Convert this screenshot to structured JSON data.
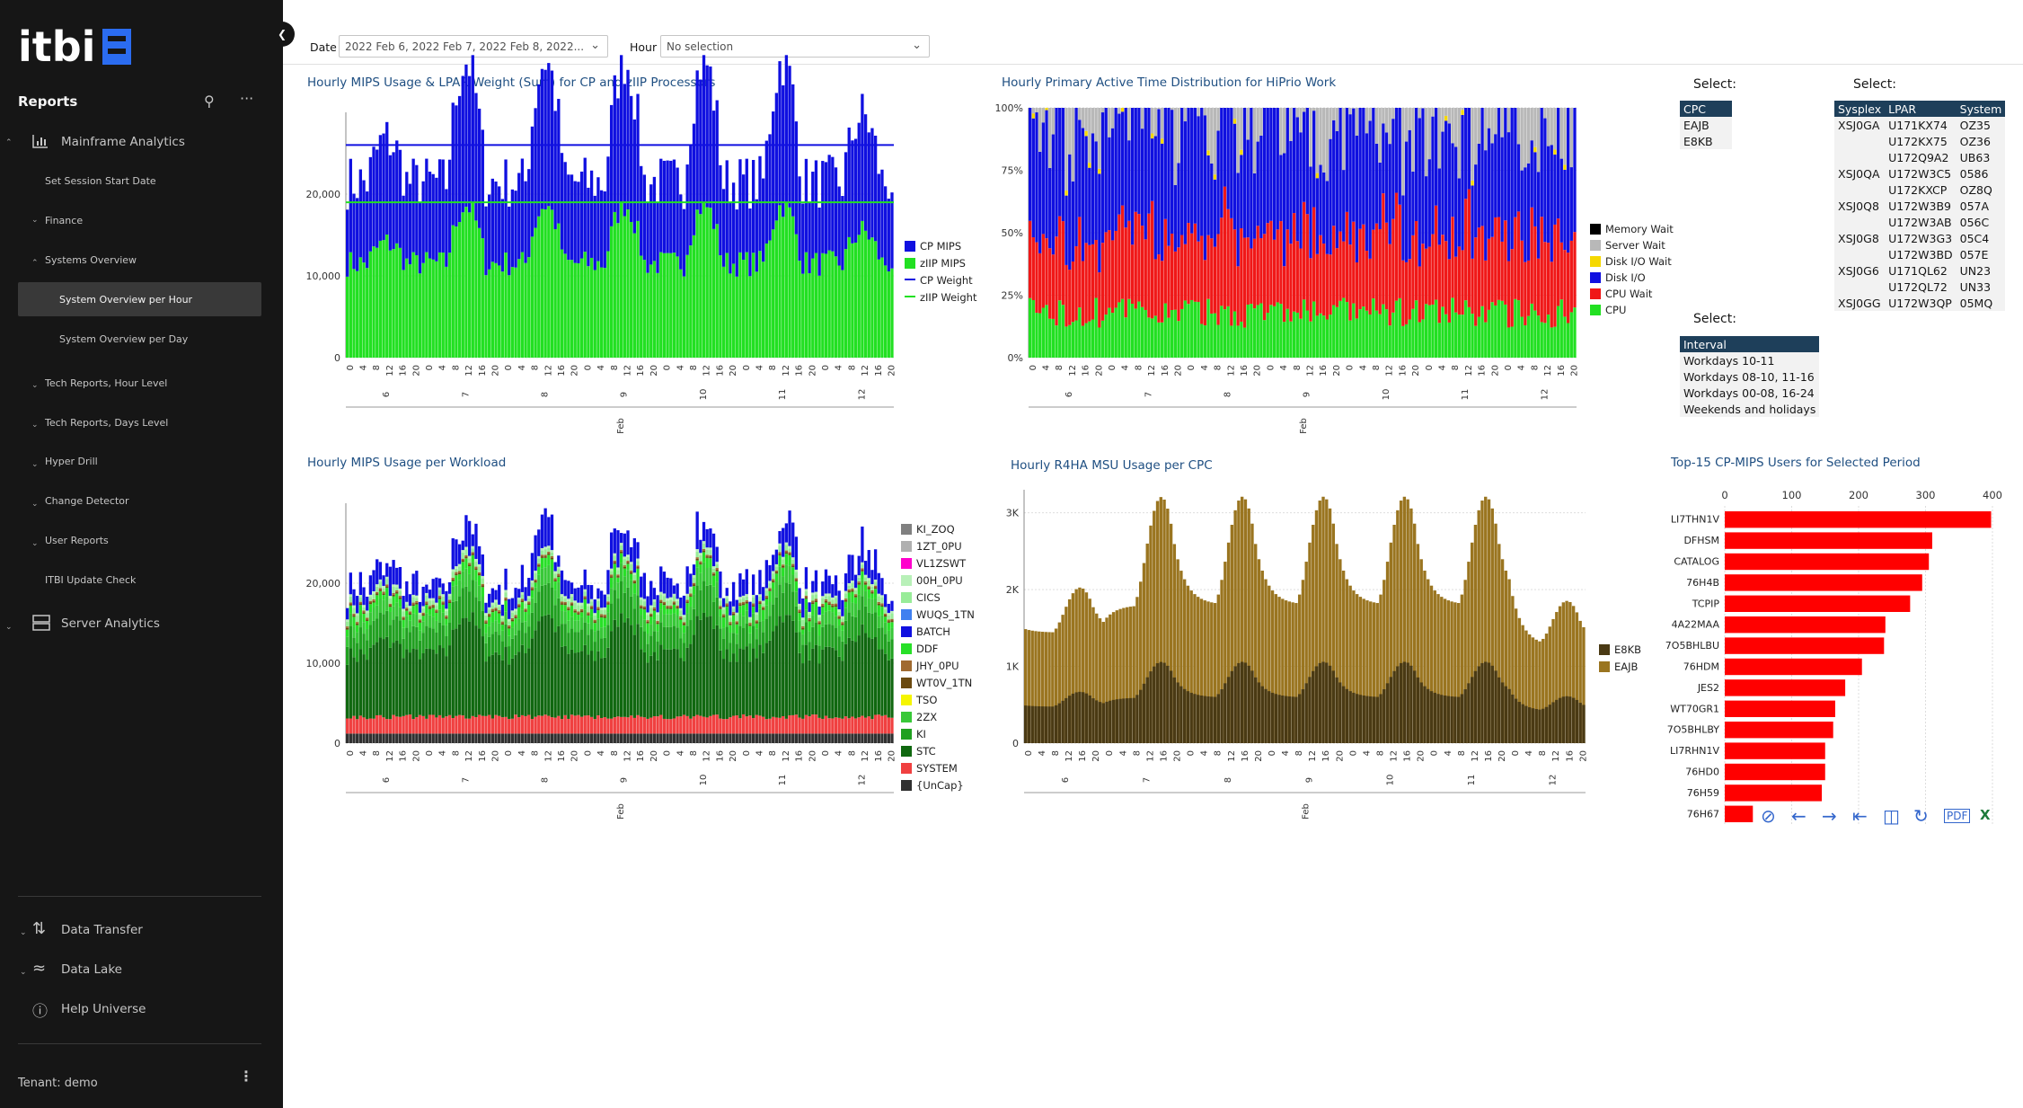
{
  "sidebar": {
    "reports": "Reports",
    "mainframe": "Mainframe Analytics",
    "set_session": "Set Session Start Date",
    "finance": "Finance",
    "systems_overview": "Systems Overview",
    "sys_per_hour": "System Overview per Hour",
    "sys_per_day": "System Overview per Day",
    "tech_hour": "Tech Reports, Hour Level",
    "tech_days": "Tech Reports, Days Level",
    "hyper_drill": "Hyper Drill",
    "change_detector": "Change Detector",
    "user_reports": "User Reports",
    "itbi_update": "ITBI Update Check",
    "server_analytics": "Server Analytics",
    "data_transfer": "Data Transfer",
    "data_lake": "Data Lake",
    "help_universe": "Help Universe",
    "tenant": "Tenant: demo"
  },
  "filters": {
    "date_label": "Date",
    "date_value": "2022 Feb 6, 2022 Feb 7, 2022 Feb 8, 2022...",
    "hour_label": "Hour",
    "hour_value": "No selection"
  },
  "selectors": {
    "label": "Select:",
    "cpc": {
      "header": "CPC",
      "rows": [
        "EAJB",
        "E8KB"
      ]
    },
    "interval": {
      "header": "Interval",
      "rows": [
        "Workdays 10-11",
        "Workdays 08-10, 11-16",
        "Workdays 00-08, 16-24",
        "Weekends and holidays"
      ]
    },
    "lpar": {
      "headers": [
        "Sysplex",
        "LPAR",
        "System"
      ],
      "rows": [
        [
          "XSJ0GA",
          "U171KX74",
          "OZ35"
        ],
        [
          "",
          "U172KX75",
          "OZ36"
        ],
        [
          "",
          "U172Q9A2",
          "UB63"
        ],
        [
          "XSJ0QA",
          "U172W3C5",
          "0586"
        ],
        [
          "",
          "U172KXCP",
          "OZ8Q"
        ],
        [
          "XSJ0Q8",
          "U172W3B9",
          "057A"
        ],
        [
          "",
          "U172W3AB",
          "056C"
        ],
        [
          "XSJ0G8",
          "U172W3G3",
          "05C4"
        ],
        [
          "",
          "U172W3BD",
          "057E"
        ],
        [
          "XSJ0G6",
          "U171QL62",
          "UN23"
        ],
        [
          "",
          "U172QL72",
          "UN33"
        ],
        [
          "XSJ0GG",
          "U172W3QP",
          "05MQ"
        ]
      ]
    }
  },
  "chart_data": [
    {
      "type": "bar",
      "title": "Hourly MIPS Usage & LPAR Weight (Sum) for CP and zIIP Processors",
      "xlabel": "Feb",
      "x_hours": [
        "0",
        "4",
        "8",
        "12",
        "16",
        "20"
      ],
      "x_days": [
        "6",
        "7",
        "8",
        "9",
        "10",
        "11",
        "12"
      ],
      "yticks": [
        "0",
        "10,000",
        "20,000"
      ],
      "ylim": [
        0,
        30000
      ],
      "series": [
        {
          "name": "CP MIPS",
          "color": "#1010e0"
        },
        {
          "name": "zIIP MIPS",
          "color": "#22e022"
        },
        {
          "name": "CP Weight",
          "color": "#1010e0",
          "value": 26000
        },
        {
          "name": "zIIP Weight",
          "color": "#22e022",
          "value": 19000
        }
      ]
    },
    {
      "type": "bar",
      "title": "Hourly Primary Active Time Distribution for HiPrio Work",
      "xlabel": "Feb",
      "x_hours": [
        "0",
        "4",
        "8",
        "12",
        "16",
        "20"
      ],
      "x_days": [
        "6",
        "7",
        "8",
        "9",
        "10",
        "11",
        "12"
      ],
      "yticks": [
        "0%",
        "25%",
        "50%",
        "75%",
        "100%"
      ],
      "ylim": [
        0,
        100
      ],
      "series": [
        {
          "name": "Memory Wait",
          "color": "#000000"
        },
        {
          "name": "Server Wait",
          "color": "#b8b8b8"
        },
        {
          "name": "Disk I/O Wait",
          "color": "#f5d800"
        },
        {
          "name": "Disk I/O",
          "color": "#1010e0"
        },
        {
          "name": "CPU Wait",
          "color": "#f01818"
        },
        {
          "name": "CPU",
          "color": "#22e022"
        }
      ]
    },
    {
      "type": "bar",
      "title": "Hourly MIPS Usage per Workload",
      "xlabel": "Feb",
      "x_hours": [
        "0",
        "4",
        "8",
        "12",
        "16",
        "20"
      ],
      "x_days": [
        "6",
        "7",
        "8",
        "9",
        "10",
        "11",
        "12"
      ],
      "yticks": [
        "0",
        "10,000",
        "20,000"
      ],
      "ylim": [
        0,
        30000
      ],
      "series": [
        {
          "name": "KI_ZOQ",
          "color": "#808080"
        },
        {
          "name": "1ZT_0PU",
          "color": "#b0b0b0"
        },
        {
          "name": "VL1ZSWT",
          "color": "#ff00cc"
        },
        {
          "name": "00H_0PU",
          "color": "#b8f0b8"
        },
        {
          "name": "CICS",
          "color": "#98ec98"
        },
        {
          "name": "WUQS_1TN",
          "color": "#4080f0"
        },
        {
          "name": "BATCH",
          "color": "#1010e0"
        },
        {
          "name": "DDF",
          "color": "#28e028"
        },
        {
          "name": "JHY_0PU",
          "color": "#a06a30"
        },
        {
          "name": "WT0V_1TN",
          "color": "#6b4a10"
        },
        {
          "name": "TSO",
          "color": "#f5f500"
        },
        {
          "name": "2ZX",
          "color": "#38c838"
        },
        {
          "name": "KI",
          "color": "#20a020"
        },
        {
          "name": "STC",
          "color": "#106810"
        },
        {
          "name": "SYSTEM",
          "color": "#f04040"
        },
        {
          "name": "{UnCap}",
          "color": "#303030"
        }
      ]
    },
    {
      "type": "bar",
      "title": "Hourly R4HA MSU Usage per CPC",
      "xlabel": "Feb",
      "x_hours": [
        "0",
        "4",
        "8",
        "12",
        "16",
        "20"
      ],
      "x_days": [
        "6",
        "7",
        "8",
        "9",
        "10",
        "11",
        "12"
      ],
      "yticks": [
        "0",
        "1K",
        "2K",
        "3K"
      ],
      "ylim": [
        0,
        3300
      ],
      "series": [
        {
          "name": "E8KB",
          "color": "#4a3a14"
        },
        {
          "name": "EAJB",
          "color": "#9a7520"
        }
      ]
    },
    {
      "type": "bar",
      "orientation": "horizontal",
      "title": "Top-15 CP-MIPS Users for Selected Period",
      "xticks": [
        "0",
        "100",
        "200",
        "300",
        "400"
      ],
      "xlim": [
        0,
        400
      ],
      "color": "#ff0000",
      "categories": [
        "LI7THN1V",
        "DFHSM",
        "CATALOG",
        "76H4B",
        "TCPIP",
        "4A22MAA",
        "7O5BHLBU",
        "76HDM",
        "JES2",
        "WT70GR1",
        "7O5BHLBY",
        "LI7RHN1V",
        "76HD0",
        "76H59",
        "76H67"
      ],
      "values": [
        398,
        310,
        305,
        295,
        277,
        240,
        238,
        205,
        180,
        165,
        162,
        150,
        150,
        145,
        42
      ]
    }
  ]
}
